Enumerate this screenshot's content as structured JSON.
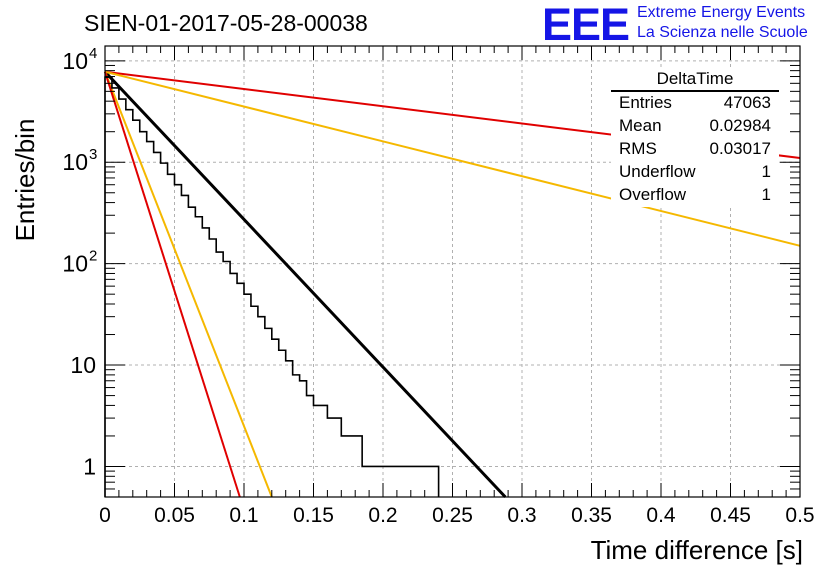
{
  "header": {
    "run_id": "SIEN-01-2017-05-28-00038",
    "logo_text": "EEE",
    "logo_line1": "Extreme Energy Events",
    "logo_line2": "La Scienza nelle Scuole",
    "brand_color": "#1515e6"
  },
  "stats_box": {
    "title": "DeltaTime",
    "rows": [
      {
        "label": "Entries",
        "value": "47063"
      },
      {
        "label": "Mean",
        "value": "0.02984"
      },
      {
        "label": "RMS",
        "value": "0.03017"
      },
      {
        "label": "Underflow",
        "value": "1"
      },
      {
        "label": "Overflow",
        "value": "1"
      }
    ]
  },
  "chart_data": {
    "type": "histogram",
    "xlabel": "Time difference [s]",
    "ylabel": "Entries/bin",
    "xlim": [
      0,
      0.5
    ],
    "ylim": [
      0.5,
      14000
    ],
    "y_scale": "log",
    "grid": true,
    "x_ticks": [
      "0",
      "0.05",
      "0.1",
      "0.15",
      "0.2",
      "0.25",
      "0.3",
      "0.35",
      "0.4",
      "0.45",
      "0.5"
    ],
    "x_tick_values": [
      0,
      0.05,
      0.1,
      0.15,
      0.2,
      0.25,
      0.3,
      0.35,
      0.4,
      0.45,
      0.5
    ],
    "y_ticks": [
      {
        "value": 10000,
        "base": "10",
        "exp": "4"
      },
      {
        "value": 1000,
        "base": "10",
        "exp": "3"
      },
      {
        "value": 100,
        "base": "10",
        "exp": "2"
      },
      {
        "value": 10,
        "base": "10",
        "exp": ""
      },
      {
        "value": 1,
        "base": "1",
        "exp": ""
      }
    ],
    "bin_width": 0.005,
    "histogram_counts": [
      6900,
      5400,
      4200,
      3300,
      2600,
      2000,
      1600,
      1250,
      980,
      760,
      600,
      470,
      360,
      290,
      225,
      175,
      130,
      105,
      80,
      64,
      50,
      38,
      30,
      23,
      18,
      14,
      11,
      8,
      7,
      5,
      4,
      4,
      3,
      3,
      2,
      2,
      2,
      1,
      1,
      1,
      1,
      1,
      1,
      1,
      1,
      1,
      1,
      1
    ],
    "fit_lines": [
      {
        "name": "data-fit",
        "color": "#000000",
        "x": [
          0,
          0.288
        ],
        "y": [
          7800,
          0.5
        ]
      },
      {
        "name": "red-slow",
        "color": "#e00000",
        "x": [
          0,
          0.5
        ],
        "y": [
          7800,
          1100
        ]
      },
      {
        "name": "yellow-slow",
        "color": "#f5b800",
        "x": [
          0,
          0.5
        ],
        "y": [
          7800,
          150
        ]
      },
      {
        "name": "yellow-fast",
        "color": "#f5b800",
        "x": [
          0,
          0.12
        ],
        "y": [
          7800,
          0.5
        ]
      },
      {
        "name": "red-fast",
        "color": "#e00000",
        "x": [
          0,
          0.097
        ],
        "y": [
          7800,
          0.5
        ]
      }
    ]
  }
}
